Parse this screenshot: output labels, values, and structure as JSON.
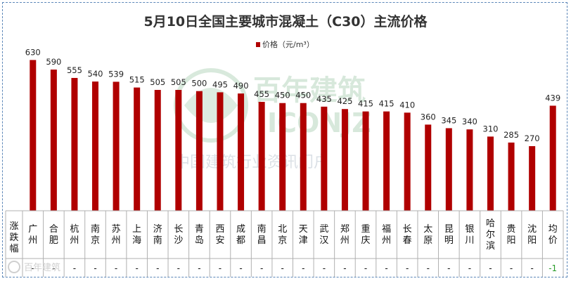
{
  "watermark": {
    "brand_cn": "百年建筑",
    "brand_en": "ICONJZ",
    "slogan": "中国建筑行业资讯门户",
    "source": "百年建筑",
    "icon": "leaf-logo-icon"
  },
  "table": {
    "row_label": "涨跌幅"
  },
  "chart_data": {
    "type": "bar",
    "title": "5月10日全国主要城市混凝土（C30）主流价格",
    "legend": [
      {
        "name": "价格（元/m³）",
        "color": "#b00000"
      }
    ],
    "legend_position": "top-center",
    "bar_color": "#b00000",
    "grid": false,
    "ylim": [
      0,
      640
    ],
    "categories": [
      "广州",
      "合肥",
      "杭州",
      "南京",
      "苏州",
      "上海",
      "济南",
      "长沙",
      "青岛",
      "西安",
      "成都",
      "南昌",
      "北京",
      "天津",
      "武汉",
      "郑州",
      "重庆",
      "福州",
      "长春",
      "太原",
      "昆明",
      "银川",
      "哈尔滨",
      "贵阳",
      "沈阳",
      "均价"
    ],
    "values": [
      630,
      590,
      555,
      540,
      539,
      515,
      505,
      505,
      500,
      495,
      490,
      455,
      450,
      450,
      435,
      425,
      415,
      415,
      410,
      360,
      345,
      340,
      310,
      285,
      270,
      439
    ],
    "changes": [
      "-",
      "-",
      "-",
      "-",
      "-",
      "-",
      "-",
      "-",
      "-",
      "-",
      "-",
      "-",
      "-",
      "-",
      "-",
      "-",
      "-",
      "-",
      "-",
      "-",
      "-",
      "-",
      "-",
      "-",
      "-",
      "-1"
    ]
  }
}
